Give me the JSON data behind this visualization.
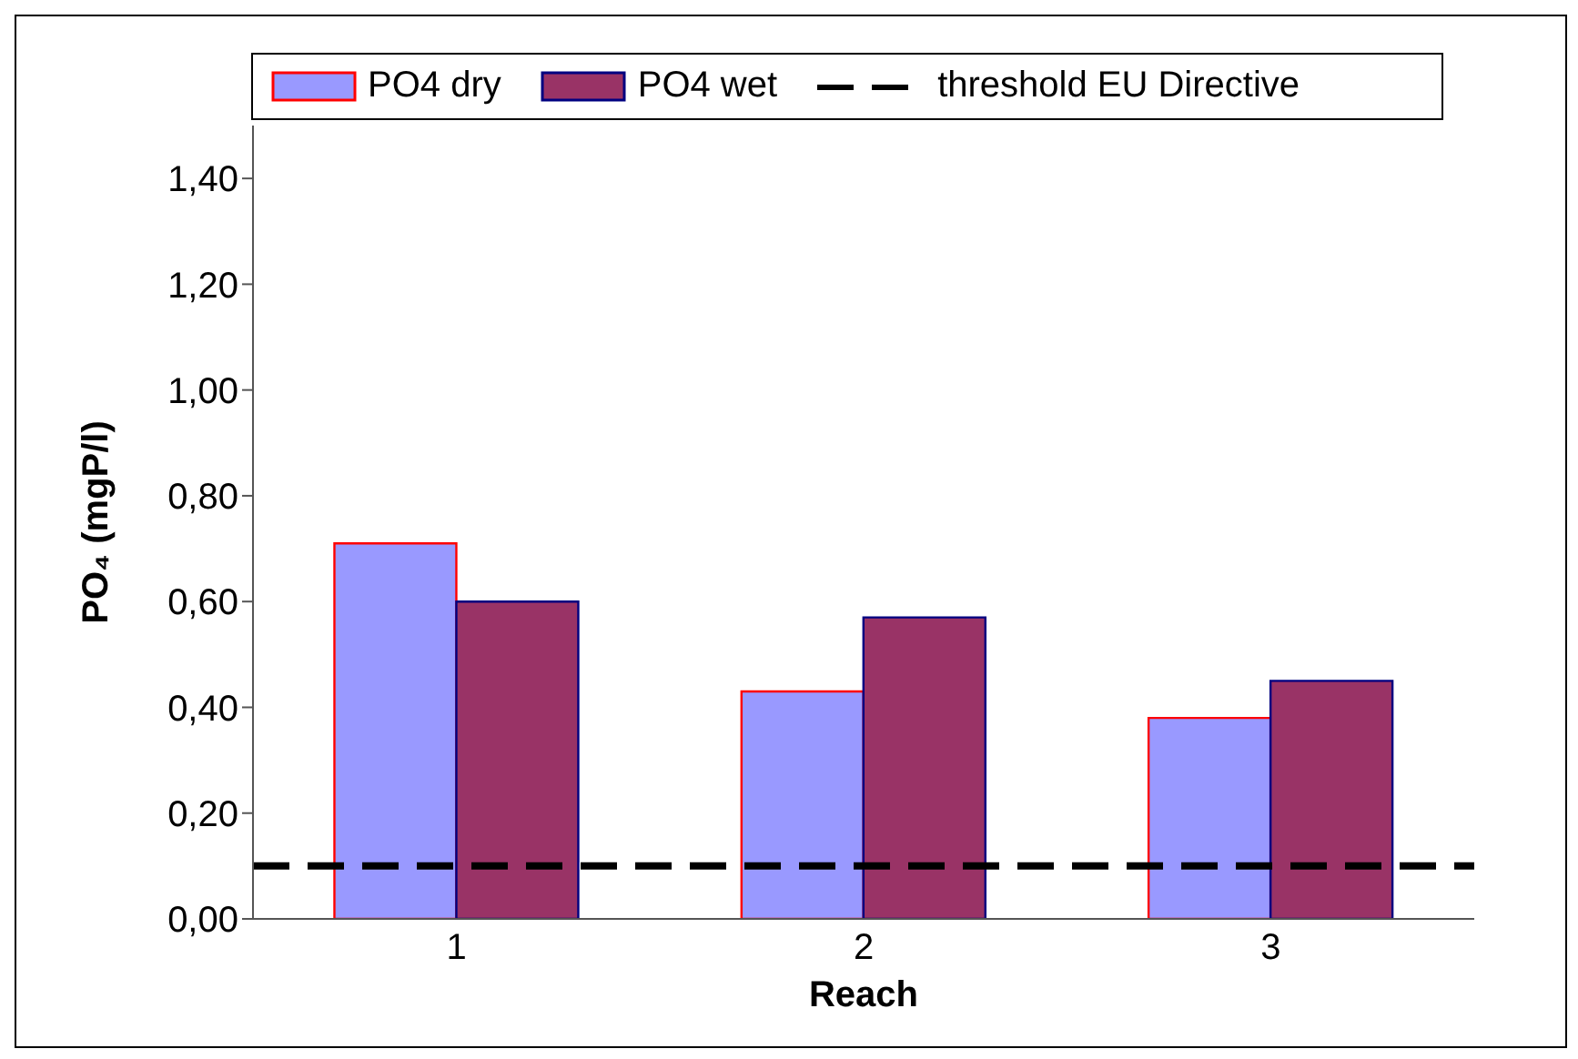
{
  "chart_data": {
    "type": "bar",
    "xlabel": "Reach",
    "ylabel": "PO₄ (mgP/l)",
    "categories": [
      "1",
      "2",
      "3"
    ],
    "series": [
      {
        "name": "PO4 dry",
        "color": "#9999ff",
        "values": [
          0.71,
          0.43,
          0.38
        ]
      },
      {
        "name": "PO4 wet",
        "color": "#993366",
        "values": [
          0.6,
          0.57,
          0.45
        ]
      }
    ],
    "ylim": [
      0,
      1.5
    ],
    "yticks": [
      {
        "value": 0,
        "label": "0,00"
      },
      {
        "value": 0.2,
        "label": "0,20"
      },
      {
        "value": 0.4,
        "label": "0,40"
      },
      {
        "value": 0.6,
        "label": "0,60"
      },
      {
        "value": 0.8,
        "label": "0,80"
      },
      {
        "value": 1.0,
        "label": "1,00"
      },
      {
        "value": 1.2,
        "label": "1,20"
      },
      {
        "value": 1.4,
        "label": "1,40"
      }
    ],
    "ref_lines": [
      {
        "axis": "y",
        "value": 0.1,
        "label": "threshold EU Directive",
        "color": "#000000",
        "line_style": "dashed"
      }
    ],
    "legend": "top"
  }
}
